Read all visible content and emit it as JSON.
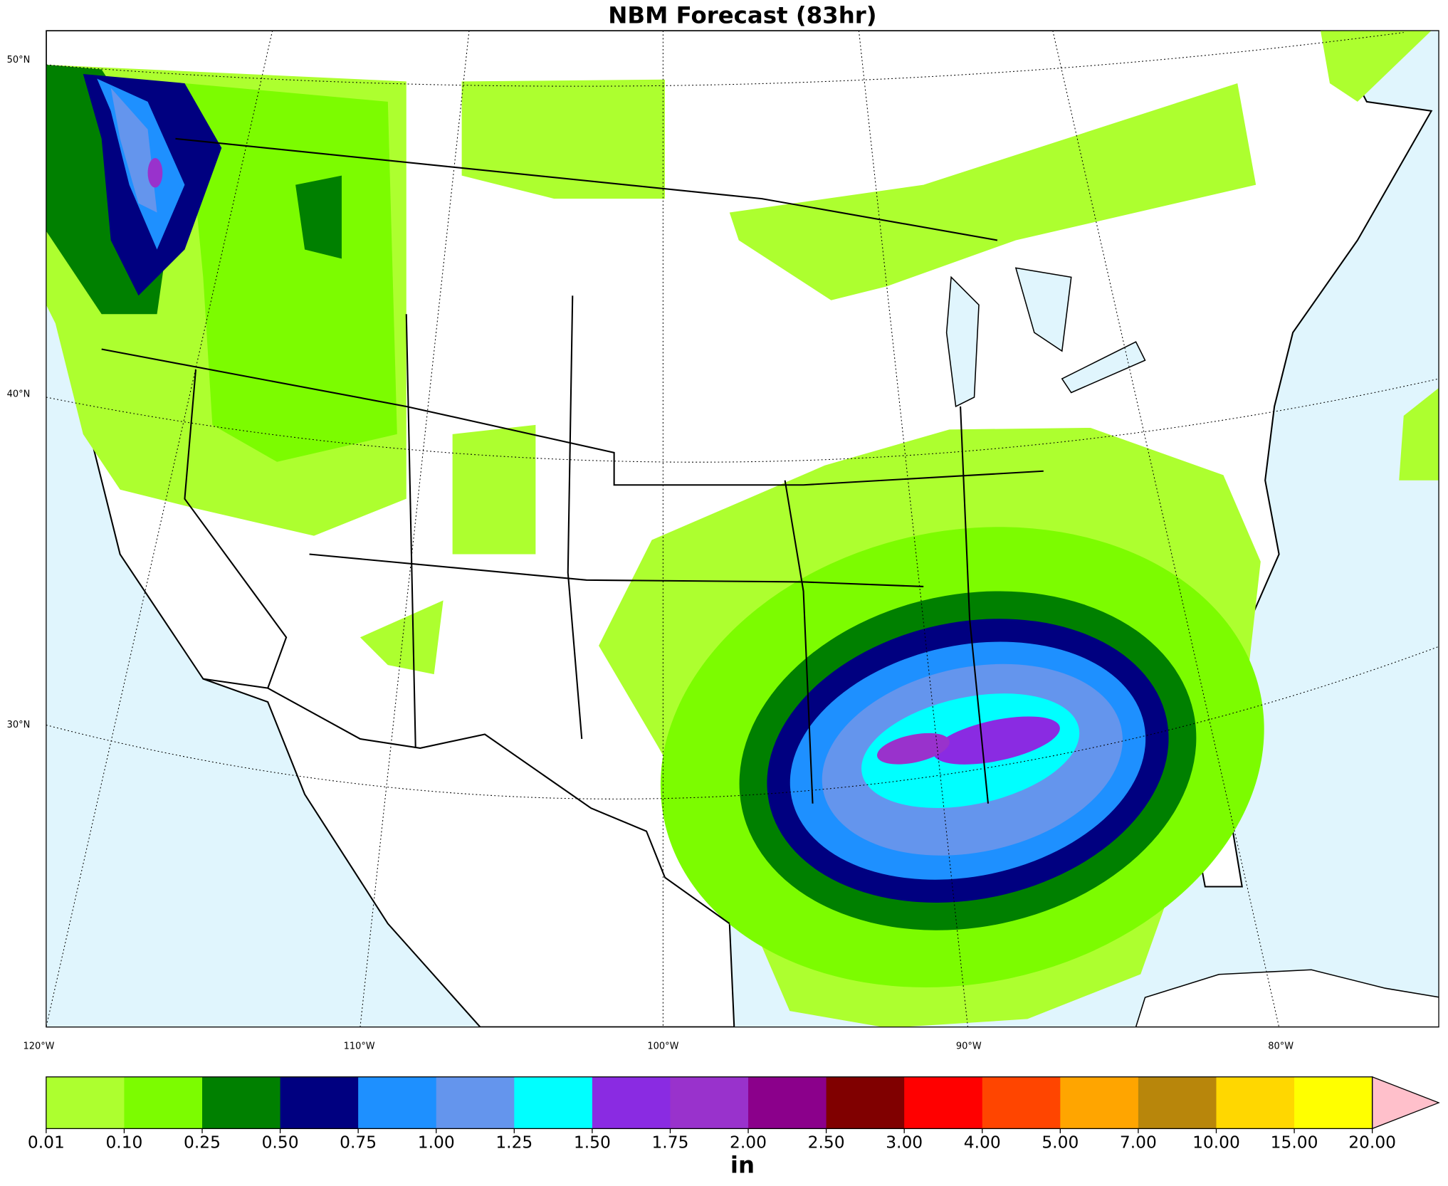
{
  "title": "NBM Forecast (83hr)",
  "map": {
    "lat_labels": [
      "50°N",
      "40°N",
      "30°N"
    ],
    "lon_labels": [
      "120°W",
      "110°W",
      "100°W",
      "90°W",
      "80°W"
    ]
  },
  "colorbar": {
    "unit": "in",
    "levels": [
      {
        "value": 0.01,
        "label": "0.01"
      },
      {
        "value": 0.1,
        "label": "0.10"
      },
      {
        "value": 0.25,
        "label": "0.25"
      },
      {
        "value": 0.5,
        "label": "0.50"
      },
      {
        "value": 0.75,
        "label": "0.75"
      },
      {
        "value": 1,
        "label": "1.00"
      },
      {
        "value": 1.25,
        "label": "1.25"
      },
      {
        "value": 1.5,
        "label": "1.50"
      },
      {
        "value": 1.75,
        "label": "1.75"
      },
      {
        "value": 2,
        "label": "2.00"
      },
      {
        "value": 2.5,
        "label": "2.50"
      },
      {
        "value": 3,
        "label": "3.00"
      },
      {
        "value": 4,
        "label": "4.00"
      },
      {
        "value": 5,
        "label": "5.00"
      },
      {
        "value": 7,
        "label": "7.00"
      },
      {
        "value": 10,
        "label": "10.00"
      },
      {
        "value": 15,
        "label": "15.00"
      },
      {
        "value": 20,
        "label": "20.00"
      }
    ],
    "colors": [
      "#adff2f",
      "#7cfc00",
      "#008000",
      "#000080",
      "#1e90ff",
      "#6495ed",
      "#00ffff",
      "#8a2be2",
      "#9932cc",
      "#8b008b",
      "#800000",
      "#ff0000",
      "#ff4500",
      "#ffa500",
      "#b8860b",
      "#ffd700",
      "#ffff00"
    ],
    "extend_color": "#ffc0cb"
  }
}
